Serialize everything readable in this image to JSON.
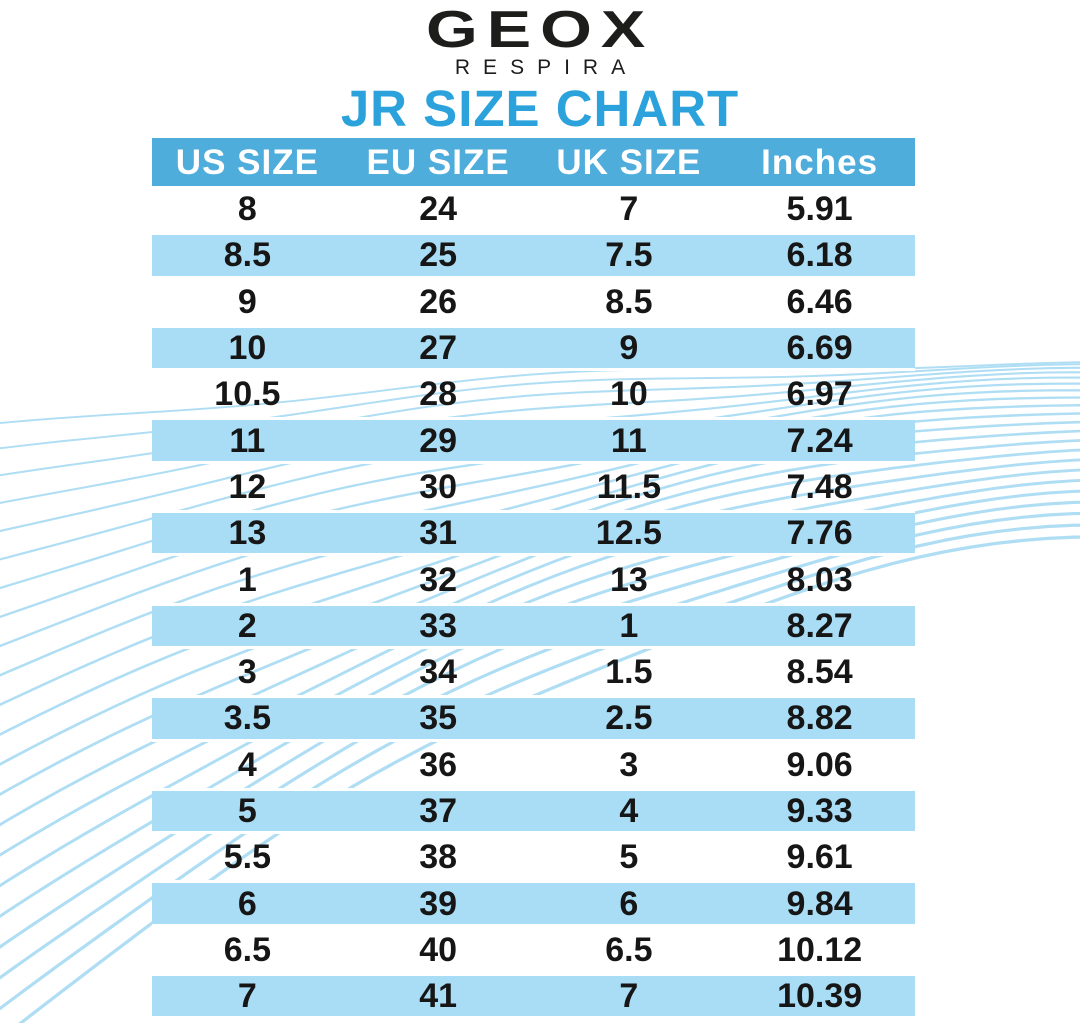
{
  "brand": {
    "logo": "GEOX",
    "subtitle": "RESPIRA"
  },
  "title": "JR SIZE CHART",
  "colors": {
    "title_blue": "#2BA2DB",
    "header_bar_blue": "#4FADDC",
    "stripe_light_blue": "#A9DCF5",
    "wave_line_blue": "#A6DAF3",
    "text_black": "#1D1D1B",
    "header_text_white": "#FFFFFF"
  },
  "chart_data": {
    "type": "table",
    "title": "JR SIZE CHART",
    "columns": [
      "US SIZE",
      "EU SIZE",
      "UK SIZE",
      "Inches"
    ],
    "rows": [
      [
        "8",
        "24",
        "7",
        "5.91"
      ],
      [
        "8.5",
        "25",
        "7.5",
        "6.18"
      ],
      [
        "9",
        "26",
        "8.5",
        "6.46"
      ],
      [
        "10",
        "27",
        "9",
        "6.69"
      ],
      [
        "10.5",
        "28",
        "10",
        "6.97"
      ],
      [
        "11",
        "29",
        "11",
        "7.24"
      ],
      [
        "12",
        "30",
        "11.5",
        "7.48"
      ],
      [
        "13",
        "31",
        "12.5",
        "7.76"
      ],
      [
        "1",
        "32",
        "13",
        "8.03"
      ],
      [
        "2",
        "33",
        "1",
        "8.27"
      ],
      [
        "3",
        "34",
        "1.5",
        "8.54"
      ],
      [
        "3.5",
        "35",
        "2.5",
        "8.82"
      ],
      [
        "4",
        "36",
        "3",
        "9.06"
      ],
      [
        "5",
        "37",
        "4",
        "9.33"
      ],
      [
        "5.5",
        "38",
        "5",
        "9.61"
      ],
      [
        "6",
        "39",
        "6",
        "9.84"
      ],
      [
        "6.5",
        "40",
        "6.5",
        "10.12"
      ],
      [
        "7",
        "41",
        "7",
        "10.39"
      ]
    ],
    "layout": {
      "row_striping": "alternating white / light blue starting with white",
      "header_style": "solid blue bar with white text",
      "background": "white with light blue flowing wave lines"
    }
  }
}
